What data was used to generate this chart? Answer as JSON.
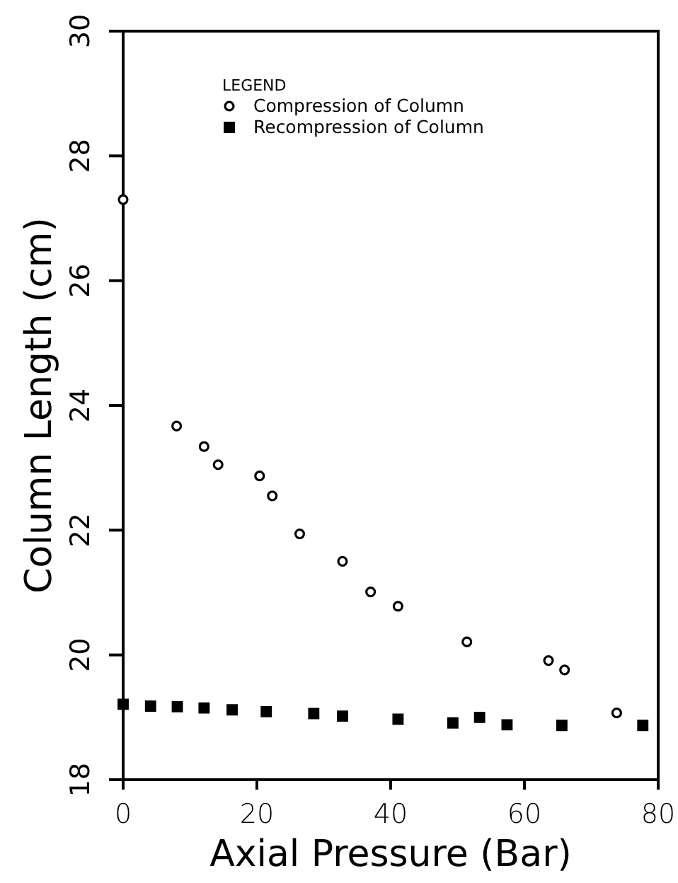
{
  "chart_data": {
    "type": "scatter",
    "xlabel": "Axial Pressure (Bar)",
    "ylabel": "Column Length (cm)",
    "legend_title": "LEGEND",
    "legend": "top left",
    "xlim": [
      0,
      80
    ],
    "xticks": [
      0,
      20,
      40,
      60,
      80
    ],
    "ylim": [
      18,
      30
    ],
    "yticks": [
      18,
      20,
      22,
      24,
      26,
      28,
      30
    ],
    "grid": false,
    "series": [
      {
        "name": "Compression of Column",
        "color": "#000000",
        "marker": "circle",
        "x": [
          0,
          8,
          12.1,
          14.2,
          20.4,
          22.3,
          26.4,
          32.8,
          37,
          41.1,
          51.4,
          63.6,
          66,
          73.8
        ],
        "values": [
          27.3,
          23.67,
          23.34,
          23.05,
          22.87,
          22.55,
          21.94,
          21.5,
          21.01,
          20.78,
          20.21,
          19.91,
          19.76,
          19.07
        ]
      },
      {
        "name": "Recompression of Column",
        "color": "#000000",
        "marker": "square",
        "x": [
          0,
          4.1,
          8.1,
          12.1,
          16.3,
          21.4,
          28.5,
          32.8,
          41.1,
          49.3,
          53.3,
          57.4,
          65.6,
          77.7
        ],
        "values": [
          19.21,
          19.18,
          19.17,
          19.15,
          19.12,
          19.09,
          19.06,
          19.02,
          18.97,
          18.91,
          19,
          18.88,
          18.87,
          18.87
        ]
      }
    ]
  }
}
